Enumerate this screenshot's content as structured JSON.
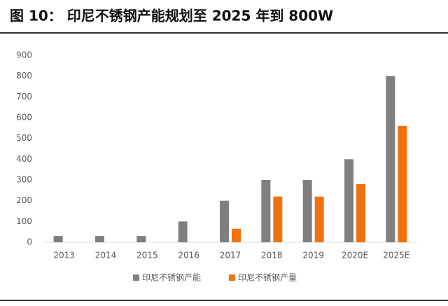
{
  "chart_data": {
    "type": "bar",
    "title": "图 10： 印尼不锈钢产能规划至 2025 年到 800W",
    "categories": [
      "2013",
      "2014",
      "2015",
      "2016",
      "2017",
      "2018",
      "2019",
      "2020E",
      "2025E"
    ],
    "series": [
      {
        "name": "印尼不锈钢产能",
        "color": "#7f7f7f",
        "values": [
          30,
          30,
          30,
          100,
          200,
          300,
          300,
          400,
          800
        ]
      },
      {
        "name": "印尼不锈钢产量",
        "color": "#f0720f",
        "values": [
          null,
          null,
          null,
          null,
          65,
          220,
          220,
          280,
          560
        ]
      }
    ],
    "ylim": [
      0,
      900
    ],
    "yticks": [
      0,
      100,
      200,
      300,
      400,
      500,
      600,
      700,
      800,
      900
    ],
    "grid": false,
    "legend": "bottom"
  }
}
